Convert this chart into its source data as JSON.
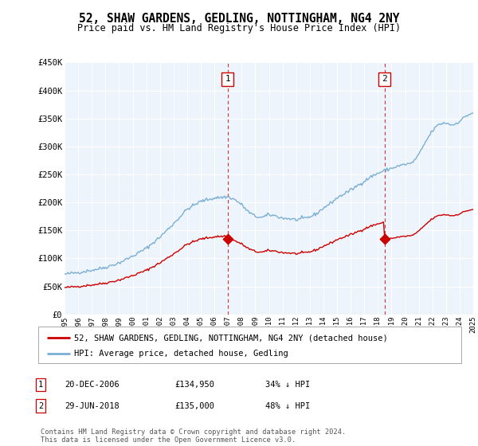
{
  "title": "52, SHAW GARDENS, GEDLING, NOTTINGHAM, NG4 2NY",
  "subtitle": "Price paid vs. HM Land Registry's House Price Index (HPI)",
  "bg_color": "#ffffff",
  "plot_bg_color": "#eef4fb",
  "grid_color": "#cccccc",
  "legend_line1": "52, SHAW GARDENS, GEDLING, NOTTINGHAM, NG4 2NY (detached house)",
  "legend_line2": "HPI: Average price, detached house, Gedling",
  "ann1": {
    "label": "1",
    "date": "20-DEC-2006",
    "price": "£134,950",
    "pct": "34% ↓ HPI"
  },
  "ann2": {
    "label": "2",
    "date": "29-JUN-2018",
    "price": "£135,000",
    "pct": "48% ↓ HPI"
  },
  "footer": "Contains HM Land Registry data © Crown copyright and database right 2024.\nThis data is licensed under the Open Government Licence v3.0.",
  "hpi_color": "#7bafd4",
  "sale_color": "#cc0000",
  "annot_color": "#cc0000",
  "ylim": [
    0,
    450000
  ],
  "xlim": [
    1995,
    2025
  ],
  "sale1_x": 2006.97,
  "sale1_y": 134950,
  "sale2_x": 2018.49,
  "sale2_y": 135000
}
